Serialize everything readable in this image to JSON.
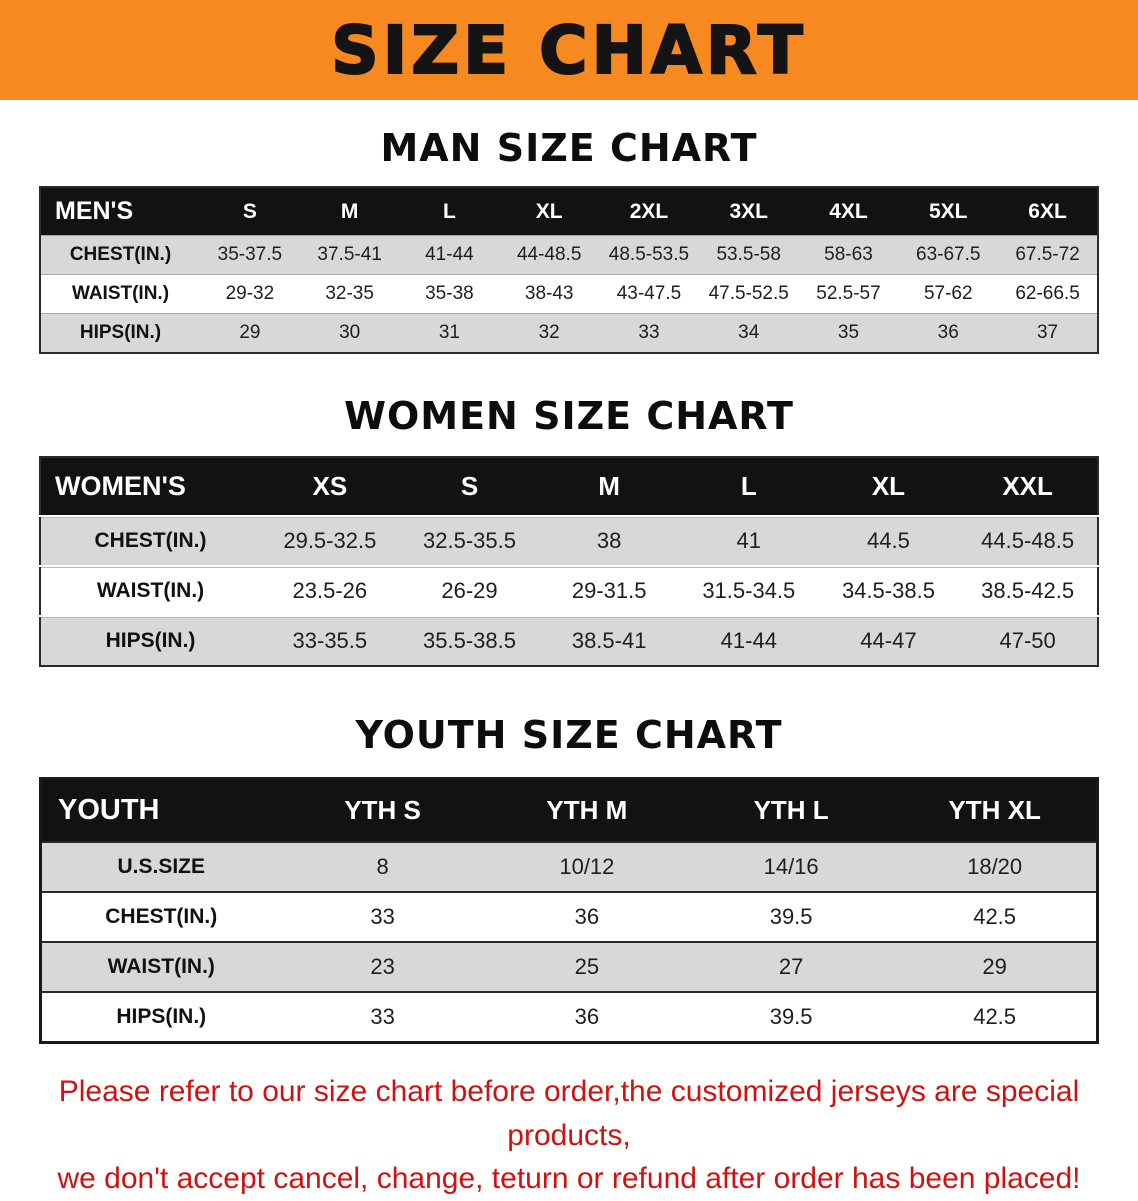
{
  "banner": {
    "title": "SIZE CHART",
    "bg_color": "#f6891f",
    "text_color": "#141414"
  },
  "colors": {
    "table_header_bg": "#121212",
    "table_header_text": "#ffffff",
    "row_gray": "#d8d8d8",
    "disclaimer_red": "#d01111"
  },
  "sections": {
    "men": {
      "heading": "MAN SIZE CHART",
      "header": [
        "MEN'S",
        "S",
        "M",
        "L",
        "XL",
        "2XL",
        "3XL",
        "4XL",
        "5XL",
        "6XL"
      ],
      "rows": [
        {
          "label": "CHEST(IN.)",
          "values": [
            "35-37.5",
            "37.5-41",
            "41-44",
            "44-48.5",
            "48.5-53.5",
            "53.5-58",
            "58-63",
            "63-67.5",
            "67.5-72"
          ]
        },
        {
          "label": "WAIST(IN.)",
          "values": [
            "29-32",
            "32-35",
            "35-38",
            "38-43",
            "43-47.5",
            "47.5-52.5",
            "52.5-57",
            "57-62",
            "62-66.5"
          ]
        },
        {
          "label": "HIPS(IN.)",
          "values": [
            "29",
            "30",
            "31",
            "32",
            "33",
            "34",
            "35",
            "36",
            "37"
          ]
        }
      ]
    },
    "women": {
      "heading": "WOMEN SIZE CHART",
      "header": [
        "WOMEN'S",
        "XS",
        "S",
        "M",
        "L",
        "XL",
        "XXL"
      ],
      "rows": [
        {
          "label": "CHEST(IN.)",
          "values": [
            "29.5-32.5",
            "32.5-35.5",
            "38",
            "41",
            "44.5",
            "44.5-48.5"
          ]
        },
        {
          "label": "WAIST(IN.)",
          "values": [
            "23.5-26",
            "26-29",
            "29-31.5",
            "31.5-34.5",
            "34.5-38.5",
            "38.5-42.5"
          ]
        },
        {
          "label": "HIPS(IN.)",
          "values": [
            "33-35.5",
            "35.5-38.5",
            "38.5-41",
            "41-44",
            "44-47",
            "47-50"
          ]
        }
      ]
    },
    "youth": {
      "heading": "YOUTH SIZE CHART",
      "header": [
        "YOUTH",
        "YTH S",
        "YTH M",
        "YTH L",
        "YTH XL"
      ],
      "rows": [
        {
          "label": "U.S.SIZE",
          "values": [
            "8",
            "10/12",
            "14/16",
            "18/20"
          ]
        },
        {
          "label": "CHEST(IN.)",
          "values": [
            "33",
            "36",
            "39.5",
            "42.5"
          ]
        },
        {
          "label": "WAIST(IN.)",
          "values": [
            "23",
            "25",
            "27",
            "29"
          ]
        },
        {
          "label": "HIPS(IN.)",
          "values": [
            "33",
            "36",
            "39.5",
            "42.5"
          ]
        }
      ]
    }
  },
  "footer": {
    "line1": "Please refer to our size chart before order,the customized jerseys are special products,",
    "line2": "we don't accept cancel, change, teturn or refund after order has been placed!"
  }
}
